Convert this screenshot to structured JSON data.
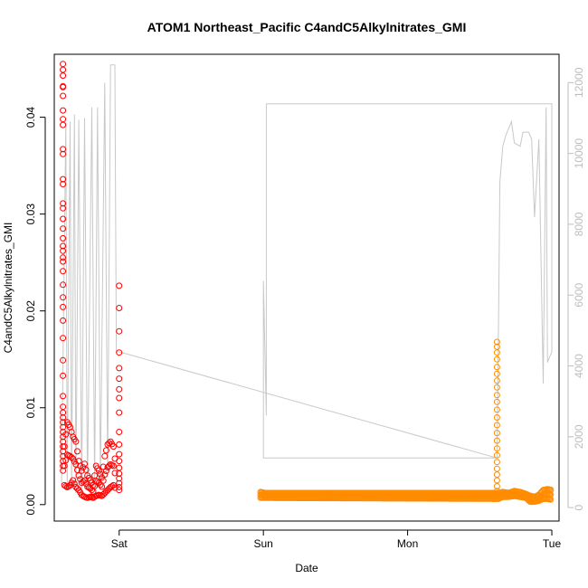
{
  "chart_data": {
    "type": "scatter",
    "title": "ATOM1 Northeast_Pacific C4andC5Alkylnitrates_GMI",
    "xlabel": "Date",
    "ylabel": "C4andC5Alkylnitrates_GMI",
    "x_ticks": [
      "Sat",
      "Sun",
      "Mon",
      "Tue"
    ],
    "x_range_days": [
      -0.45,
      3.05
    ],
    "y_left": {
      "range": [
        -0.0017,
        0.0465
      ],
      "ticks": [
        "0.00",
        "0.01",
        "0.02",
        "0.03",
        "0.04"
      ]
    },
    "y_right": {
      "range": [
        -380,
        12800
      ],
      "ticks": [
        "0",
        "2000",
        "4000",
        "6000",
        "8000",
        "10000",
        "12000"
      ],
      "color": "#bdbdbd"
    },
    "grid": false,
    "series": [
      {
        "color": "#ff0000",
        "marker": "open-circle",
        "axis": "left",
        "x_start": -0.43,
        "x_end": 0.0,
        "points": [
          [
            -0.39,
            0.0455
          ],
          [
            -0.39,
            0.0449
          ],
          [
            -0.39,
            0.0443
          ],
          [
            -0.39,
            0.0432
          ],
          [
            -0.39,
            0.0431
          ],
          [
            -0.39,
            0.0422
          ],
          [
            -0.39,
            0.0407
          ],
          [
            -0.39,
            0.0398
          ],
          [
            -0.39,
            0.0392
          ],
          [
            -0.39,
            0.0367
          ],
          [
            -0.39,
            0.0362
          ],
          [
            -0.39,
            0.0336
          ],
          [
            -0.39,
            0.0331
          ],
          [
            -0.39,
            0.0311
          ],
          [
            -0.39,
            0.0306
          ],
          [
            -0.39,
            0.0295
          ],
          [
            -0.39,
            0.0285
          ],
          [
            -0.39,
            0.0275
          ],
          [
            -0.39,
            0.0267
          ],
          [
            -0.39,
            0.0262
          ],
          [
            -0.39,
            0.0255
          ],
          [
            -0.39,
            0.0251
          ],
          [
            -0.39,
            0.0241
          ],
          [
            -0.39,
            0.0227
          ],
          [
            -0.39,
            0.0214
          ],
          [
            -0.39,
            0.0204
          ],
          [
            -0.39,
            0.019
          ],
          [
            -0.39,
            0.0172
          ],
          [
            -0.39,
            0.0149
          ],
          [
            -0.39,
            0.0133
          ],
          [
            -0.39,
            0.0112
          ],
          [
            -0.39,
            0.0101
          ],
          [
            -0.39,
            0.0095
          ],
          [
            -0.39,
            0.009
          ],
          [
            -0.39,
            0.0085
          ],
          [
            -0.39,
            0.008
          ],
          [
            -0.39,
            0.0075
          ],
          [
            -0.39,
            0.007
          ],
          [
            -0.39,
            0.0065
          ],
          [
            -0.39,
            0.006
          ],
          [
            -0.39,
            0.0055
          ],
          [
            -0.39,
            0.005
          ],
          [
            -0.39,
            0.0045
          ],
          [
            -0.39,
            0.004
          ],
          [
            -0.39,
            0.0035
          ],
          [
            0.0,
            0.0226
          ],
          [
            0.0,
            0.0203
          ],
          [
            0.0,
            0.0179
          ],
          [
            0.0,
            0.0157
          ],
          [
            0.0,
            0.0141
          ],
          [
            0.0,
            0.013
          ],
          [
            0.0,
            0.0119
          ],
          [
            0.0,
            0.011
          ],
          [
            0.0,
            0.0095
          ],
          [
            0.0,
            0.0075
          ],
          [
            0.0,
            0.0062
          ],
          [
            0.0,
            0.0052
          ],
          [
            0.0,
            0.0045
          ],
          [
            0.0,
            0.0038
          ],
          [
            0.0,
            0.0032
          ],
          [
            0.0,
            0.0027
          ],
          [
            0.0,
            0.0022
          ],
          [
            0.0,
            0.0018
          ],
          [
            0.0,
            0.0015
          ]
        ],
        "band": [
          [
            -0.38,
            0.006,
            0.002
          ],
          [
            -0.36,
            0.0085,
            0.0018
          ],
          [
            -0.34,
            0.008,
            0.002
          ],
          [
            -0.32,
            0.007,
            0.0025
          ],
          [
            -0.3,
            0.0065,
            0.0018
          ],
          [
            -0.28,
            0.0045,
            0.0015
          ],
          [
            -0.26,
            0.0035,
            0.001
          ],
          [
            -0.24,
            0.0042,
            0.0008
          ],
          [
            -0.22,
            0.003,
            0.0007
          ],
          [
            -0.2,
            0.0025,
            0.0008
          ],
          [
            -0.18,
            0.002,
            0.0007
          ],
          [
            -0.16,
            0.004,
            0.0009
          ],
          [
            -0.14,
            0.0035,
            0.001
          ],
          [
            -0.12,
            0.0028,
            0.0009
          ],
          [
            -0.1,
            0.005,
            0.0012
          ],
          [
            -0.08,
            0.0062,
            0.0015
          ],
          [
            -0.06,
            0.0065,
            0.0018
          ],
          [
            -0.04,
            0.006,
            0.002
          ],
          [
            -0.02,
            0.0035,
            0.0015
          ]
        ]
      },
      {
        "color": "#ff8c00",
        "marker": "open-circle",
        "axis": "left",
        "points": [
          [
            2.62,
            0.0168
          ],
          [
            2.62,
            0.0163
          ],
          [
            2.62,
            0.0157
          ],
          [
            2.62,
            0.015
          ],
          [
            2.62,
            0.0142
          ],
          [
            2.62,
            0.0135
          ],
          [
            2.62,
            0.0128
          ],
          [
            2.62,
            0.0121
          ],
          [
            2.62,
            0.0113
          ],
          [
            2.62,
            0.0106
          ],
          [
            2.62,
            0.0098
          ],
          [
            2.62,
            0.009
          ],
          [
            2.62,
            0.0082
          ],
          [
            2.62,
            0.0074
          ],
          [
            2.62,
            0.0066
          ],
          [
            2.62,
            0.0058
          ],
          [
            2.62,
            0.0051
          ],
          [
            2.62,
            0.0044
          ],
          [
            2.62,
            0.0037
          ],
          [
            2.62,
            0.0031
          ],
          [
            2.62,
            0.0025
          ],
          [
            2.62,
            0.0019
          ],
          [
            2.62,
            0.0014
          ],
          [
            2.62,
            0.001
          ]
        ],
        "band": [
          [
            0.98,
            0.0013,
            0.0007
          ],
          [
            1.01,
            0.0012,
            0.0007
          ],
          [
            2.63,
            0.0012,
            0.0006
          ],
          [
            2.66,
            0.0013,
            0.0008
          ],
          [
            2.7,
            0.0012,
            0.0008
          ],
          [
            2.74,
            0.0014,
            0.0009
          ],
          [
            2.78,
            0.0013,
            0.0008
          ],
          [
            2.82,
            0.0011,
            0.0007
          ],
          [
            2.85,
            0.0009,
            0.0003
          ],
          [
            2.88,
            0.0008,
            0.0003
          ],
          [
            2.91,
            0.001,
            0.0004
          ],
          [
            2.94,
            0.0015,
            0.0006
          ],
          [
            2.97,
            0.0016,
            0.0006
          ],
          [
            3.0,
            0.0015,
            0.0005
          ]
        ]
      },
      {
        "color": "#c8c8c8",
        "marker": "line",
        "axis": "right",
        "points": [
          [
            -0.4,
            600
          ],
          [
            -0.37,
            10900
          ],
          [
            -0.36,
            500
          ],
          [
            -0.34,
            10900
          ],
          [
            -0.33,
            500
          ],
          [
            -0.31,
            11100
          ],
          [
            -0.3,
            400
          ],
          [
            -0.28,
            10950
          ],
          [
            -0.26,
            300
          ],
          [
            -0.24,
            11000
          ],
          [
            -0.22,
            500
          ],
          [
            -0.19,
            11300
          ],
          [
            -0.17,
            600
          ],
          [
            -0.15,
            11300
          ],
          [
            -0.13,
            700
          ],
          [
            -0.1,
            12000
          ],
          [
            -0.08,
            1000
          ],
          [
            -0.06,
            12500
          ],
          [
            -0.03,
            12500
          ],
          [
            -0.02,
            4400
          ],
          [
            0.0,
            4400
          ],
          [
            2.62,
            1400
          ],
          [
            1.0,
            1400
          ],
          [
            1.0,
            6400
          ],
          [
            1.02,
            2600
          ],
          [
            1.02,
            11400
          ],
          [
            3.0,
            11400
          ],
          [
            3.0,
            4400
          ],
          [
            2.97,
            4100
          ],
          [
            2.96,
            11300
          ],
          [
            2.94,
            3500
          ],
          [
            2.91,
            10400
          ],
          [
            2.88,
            8200
          ],
          [
            2.86,
            10400
          ],
          [
            2.84,
            10600
          ],
          [
            2.8,
            10600
          ],
          [
            2.78,
            10200
          ],
          [
            2.74,
            10300
          ],
          [
            2.72,
            10900
          ],
          [
            2.68,
            10500
          ],
          [
            2.66,
            10200
          ],
          [
            2.64,
            9200
          ],
          [
            2.63,
            5000
          ],
          [
            2.62,
            1400
          ]
        ]
      }
    ]
  }
}
